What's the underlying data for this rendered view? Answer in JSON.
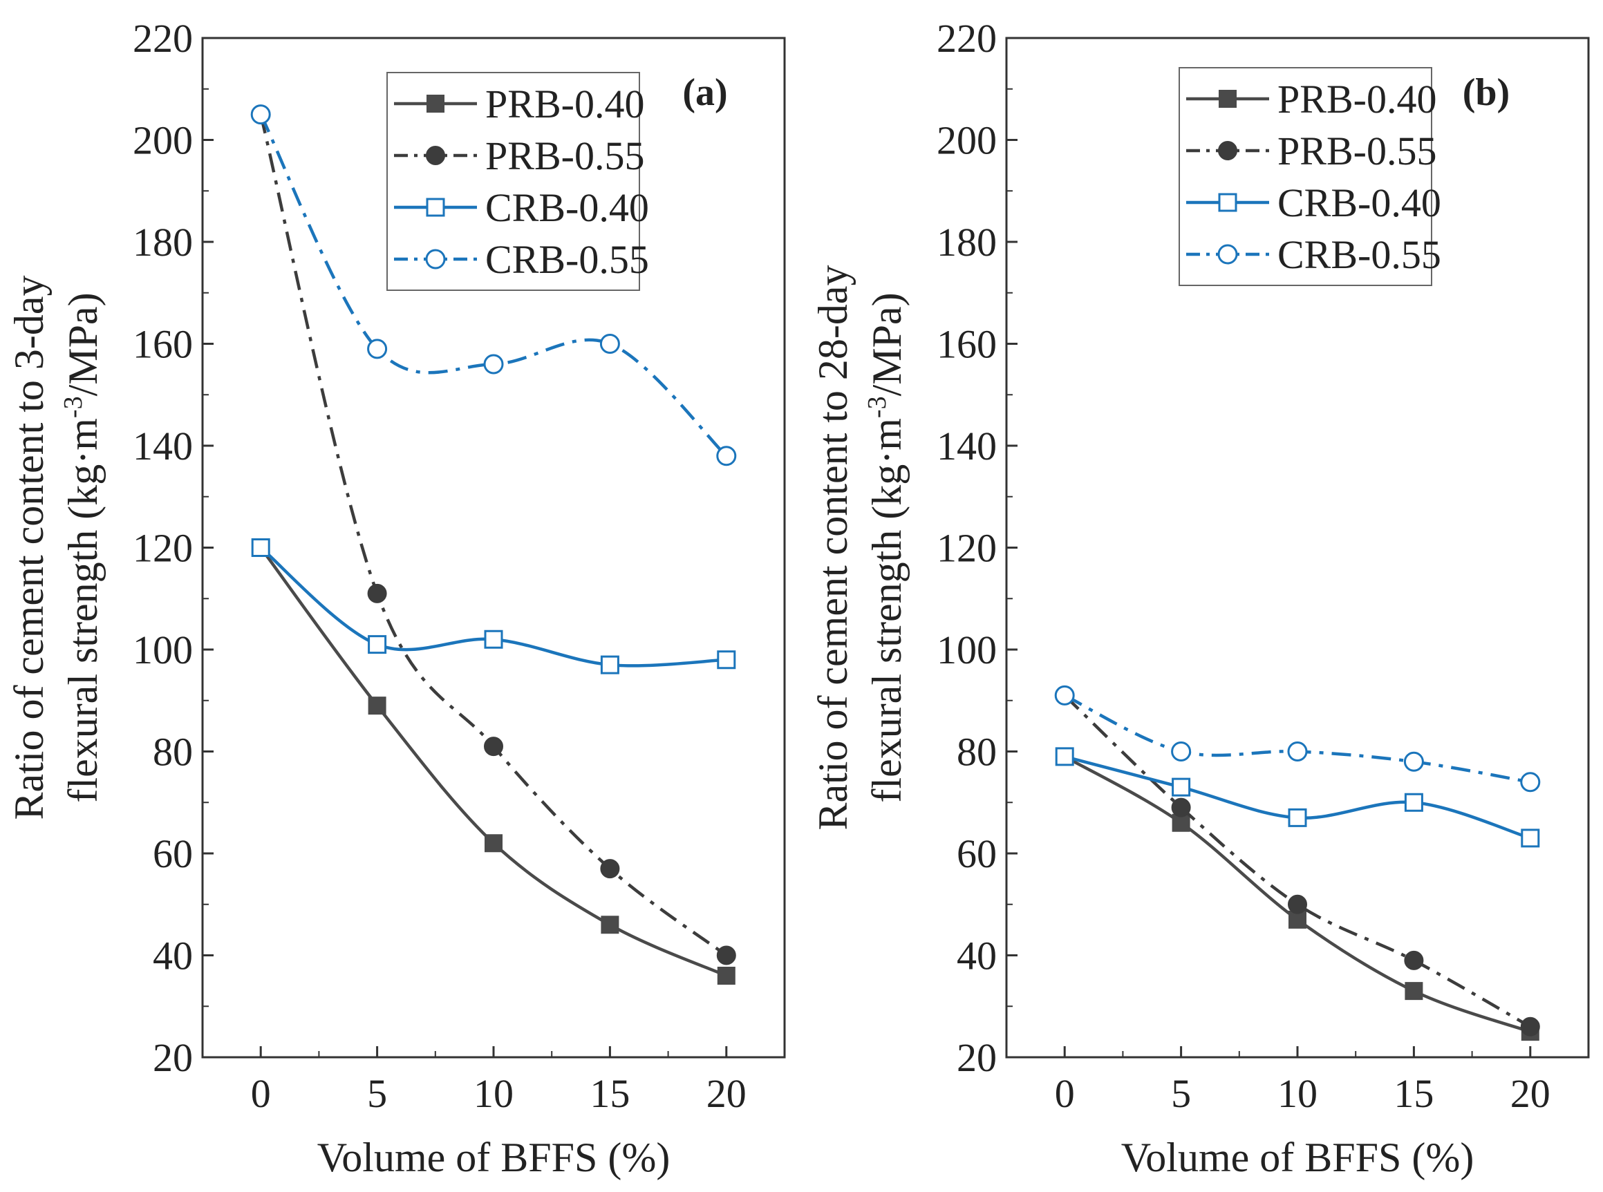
{
  "figure": {
    "title": ""
  },
  "chart_data": [
    {
      "type": "line",
      "panel_label": "(a)",
      "title": "",
      "xlabel": "Volume of BFFS (%)",
      "ylabel_line1": "Ratio of cement content to 3-day",
      "ylabel_line2_prefix": "flexural strength (kg·m",
      "ylabel_superscript": "-3",
      "ylabel_line2_suffix": "/MPa)",
      "x": [
        0,
        5,
        10,
        15,
        20
      ],
      "xlim": [
        -2.5,
        22.5
      ],
      "ylim": [
        20,
        220
      ],
      "xticks": [
        0,
        5,
        10,
        15,
        20
      ],
      "yticks": [
        20,
        40,
        60,
        80,
        100,
        120,
        140,
        160,
        180,
        200,
        220
      ],
      "legend_position": "top-right",
      "grid": false,
      "series": [
        {
          "name": "PRB-0.40",
          "values": [
            120,
            89,
            62,
            46,
            36
          ],
          "color": "#4a4a4a",
          "marker": "filled-square",
          "dash": "solid"
        },
        {
          "name": "PRB-0.55",
          "values": [
            205,
            111,
            81,
            57,
            40
          ],
          "color": "#3c3c3c",
          "marker": "filled-circle",
          "dash": "dashdot"
        },
        {
          "name": "CRB-0.40",
          "values": [
            120,
            101,
            102,
            97,
            98
          ],
          "color": "#1b75bb",
          "marker": "open-square",
          "dash": "solid"
        },
        {
          "name": "CRB-0.55",
          "values": [
            205,
            159,
            156,
            160,
            138
          ],
          "color": "#1b75bb",
          "marker": "open-circle",
          "dash": "dashdot"
        }
      ]
    },
    {
      "type": "line",
      "panel_label": "(b)",
      "title": "",
      "xlabel": "Volume of BFFS (%)",
      "ylabel_line1": "Ratio of cement content to 28-day",
      "ylabel_line2_prefix": "flexural strength (kg·m",
      "ylabel_superscript": "-3",
      "ylabel_line2_suffix": "/MPa)",
      "x": [
        0,
        5,
        10,
        15,
        20
      ],
      "xlim": [
        -2.5,
        22.5
      ],
      "ylim": [
        20,
        220
      ],
      "xticks": [
        0,
        5,
        10,
        15,
        20
      ],
      "yticks": [
        20,
        40,
        60,
        80,
        100,
        120,
        140,
        160,
        180,
        200,
        220
      ],
      "legend_position": "top-right",
      "grid": false,
      "series": [
        {
          "name": "PRB-0.40",
          "values": [
            79,
            66,
            47,
            33,
            25
          ],
          "color": "#4a4a4a",
          "marker": "filled-square",
          "dash": "solid"
        },
        {
          "name": "PRB-0.55",
          "values": [
            91,
            69,
            50,
            39,
            26
          ],
          "color": "#3c3c3c",
          "marker": "filled-circle",
          "dash": "dashdot"
        },
        {
          "name": "CRB-0.40",
          "values": [
            79,
            73,
            67,
            70,
            63
          ],
          "color": "#1b75bb",
          "marker": "open-square",
          "dash": "solid"
        },
        {
          "name": "CRB-0.55",
          "values": [
            91,
            80,
            80,
            78,
            74
          ],
          "color": "#1b75bb",
          "marker": "open-circle",
          "dash": "dashdot"
        }
      ]
    }
  ]
}
